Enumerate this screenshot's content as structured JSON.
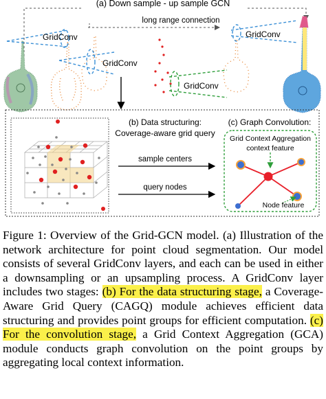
{
  "figure": {
    "top_title": "(a) Down sample - up sample GCN",
    "long_range_label": "long range connection",
    "gridconv_labels": [
      "GridConv",
      "GridConv",
      "GridConv",
      "GridConv"
    ],
    "panel_b_title_line1": "(b) Data structuring:",
    "panel_b_title_line2": "Coverage-aware grid query",
    "panel_c_title": "(c) Graph Convolution:",
    "sample_centers_label": "sample centers",
    "query_nodes_label": "query nodes",
    "gca_label_line1": "Grid Context Aggregation",
    "gca_label_line2": "context feature",
    "node_feature_label": "Node feature",
    "colors": {
      "gridconv_dashed": "#3a8fd6",
      "graph_dashed": "#2e9e3a",
      "edge": "#e8202a",
      "node_fill": "#3d6fd0",
      "node_ring": "#f6a23a",
      "highlight": "#fbf04a"
    }
  },
  "caption": {
    "part1": "Figure 1: Overview of the Grid-GCN model. (a) Illustration of the network architecture for point cloud segmentation. Our model consists of several GridConv layers, and each can be used in either a downsampling or an upsampling process. A GridConv layer includes two stages: ",
    "highlight1": "(b) For the data structuring stage,",
    "part2": " a Coverage-Aware Grid Query (CAGQ) module achieves efficient data structuring and provides point groups for efficient computation. ",
    "highlight2": "(c) For the convolution stage,",
    "part3": " a Grid Context Aggregation (GCA) module conducts graph convolution on the point groups by aggregating local context information."
  }
}
